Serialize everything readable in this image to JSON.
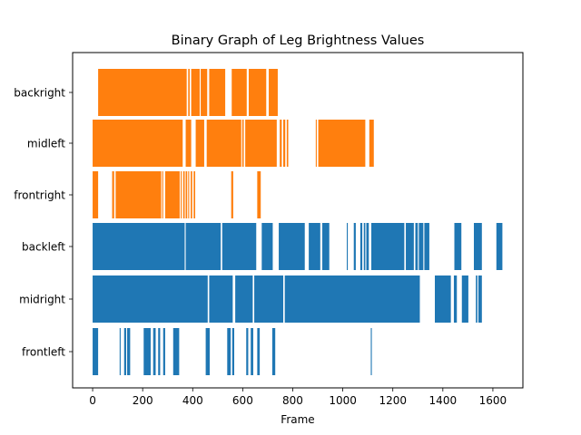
{
  "chart_data": {
    "type": "bar",
    "orientation": "horizontal-broken-bar",
    "title": "Binary Graph of Leg Brightness Values",
    "xlabel": "Frame",
    "ylabel": "",
    "xlim": [
      -80,
      1720
    ],
    "xticks": [
      0,
      200,
      400,
      600,
      800,
      1000,
      1200,
      1400,
      1600
    ],
    "grid": false,
    "legend": "none",
    "colors": {
      "blue": "#1f77b4",
      "orange": "#ff7f0e"
    },
    "categories": [
      "frontleft",
      "midright",
      "backleft",
      "frontright",
      "midleft",
      "backright"
    ],
    "series": [
      {
        "category": "frontleft",
        "color": "#1f77b4",
        "segments": [
          [
            0,
            22
          ],
          [
            108,
            112
          ],
          [
            126,
            134
          ],
          [
            138,
            150
          ],
          [
            204,
            232
          ],
          [
            242,
            252
          ],
          [
            262,
            270
          ],
          [
            282,
            290
          ],
          [
            322,
            346
          ],
          [
            452,
            468
          ],
          [
            538,
            552
          ],
          [
            558,
            566
          ],
          [
            614,
            622
          ],
          [
            632,
            642
          ],
          [
            658,
            668
          ],
          [
            718,
            730
          ],
          [
            1112,
            1116
          ]
        ]
      },
      {
        "category": "midright",
        "color": "#1f77b4",
        "segments": [
          [
            0,
            460
          ],
          [
            466,
            560
          ],
          [
            570,
            640
          ],
          [
            646,
            762
          ],
          [
            768,
            1308
          ],
          [
            1368,
            1432
          ],
          [
            1444,
            1456
          ],
          [
            1476,
            1502
          ],
          [
            1532,
            1538
          ],
          [
            1542,
            1556
          ]
        ]
      },
      {
        "category": "backleft",
        "color": "#1f77b4",
        "segments": [
          [
            0,
            368
          ],
          [
            372,
            512
          ],
          [
            518,
            654
          ],
          [
            676,
            720
          ],
          [
            744,
            848
          ],
          [
            864,
            910
          ],
          [
            918,
            946
          ],
          [
            1016,
            1020
          ],
          [
            1044,
            1052
          ],
          [
            1070,
            1078
          ],
          [
            1084,
            1090
          ],
          [
            1094,
            1104
          ],
          [
            1114,
            1246
          ],
          [
            1252,
            1284
          ],
          [
            1290,
            1300
          ],
          [
            1304,
            1322
          ],
          [
            1326,
            1346
          ],
          [
            1446,
            1474
          ],
          [
            1524,
            1556
          ],
          [
            1614,
            1638
          ]
        ]
      },
      {
        "category": "frontright",
        "color": "#ff7f0e",
        "segments": [
          [
            0,
            22
          ],
          [
            78,
            86
          ],
          [
            92,
            274
          ],
          [
            278,
            282
          ],
          [
            290,
            348
          ],
          [
            352,
            356
          ],
          [
            362,
            368
          ],
          [
            372,
            378
          ],
          [
            382,
            386
          ],
          [
            392,
            398
          ],
          [
            404,
            410
          ],
          [
            554,
            562
          ],
          [
            658,
            672
          ]
        ]
      },
      {
        "category": "midleft",
        "color": "#ff7f0e",
        "segments": [
          [
            0,
            360
          ],
          [
            372,
            394
          ],
          [
            412,
            446
          ],
          [
            456,
            594
          ],
          [
            598,
            604
          ],
          [
            610,
            736
          ],
          [
            748,
            756
          ],
          [
            762,
            770
          ],
          [
            776,
            782
          ],
          [
            892,
            896
          ],
          [
            902,
            1090
          ],
          [
            1106,
            1124
          ]
        ]
      },
      {
        "category": "backright",
        "color": "#ff7f0e",
        "segments": [
          [
            22,
            376
          ],
          [
            382,
            388
          ],
          [
            394,
            428
          ],
          [
            432,
            458
          ],
          [
            466,
            530
          ],
          [
            556,
            616
          ],
          [
            624,
            694
          ],
          [
            704,
            740
          ]
        ]
      }
    ]
  }
}
